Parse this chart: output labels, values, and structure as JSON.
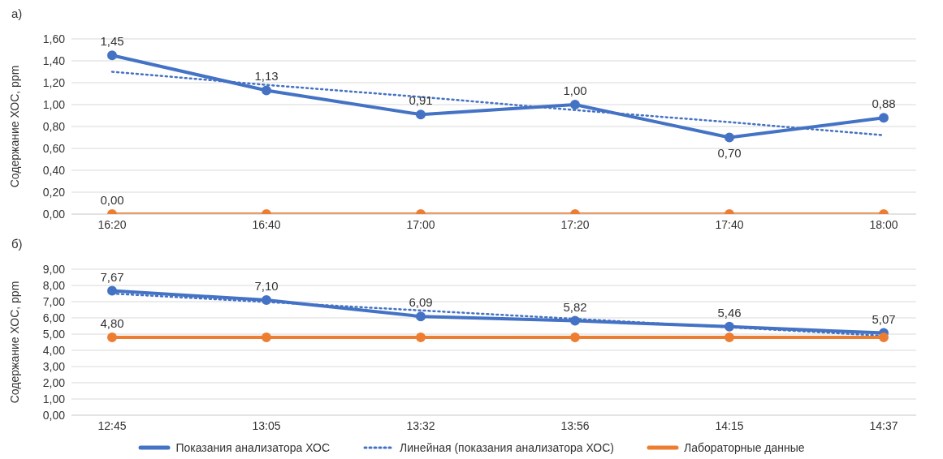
{
  "chart_data": [
    {
      "type": "line",
      "title": "а)",
      "ylabel": "Содержание ХОС, ppm",
      "categories": [
        "16:20",
        "16:40",
        "17:00",
        "17:20",
        "17:40",
        "18:00"
      ],
      "ylim": [
        0,
        1.6
      ],
      "yticks": [
        {
          "value": 0,
          "label": "0,00"
        },
        {
          "value": 0.2,
          "label": "0,20"
        },
        {
          "value": 0.4,
          "label": "0,40"
        },
        {
          "value": 0.6,
          "label": "0,60"
        },
        {
          "value": 0.8,
          "label": "0,80"
        },
        {
          "value": 1.0,
          "label": "1,00"
        },
        {
          "value": 1.2,
          "label": "1,20"
        },
        {
          "value": 1.4,
          "label": "1,40"
        },
        {
          "value": 1.6,
          "label": "1,60"
        }
      ],
      "grid": "y",
      "series": [
        {
          "color": "#4472c4",
          "values": [
            1.45,
            1.13,
            0.91,
            1.0,
            0.7,
            0.88
          ],
          "value_labels": [
            "1,45",
            "1,13",
            "0,91",
            "1,00",
            "0,70",
            "0,88"
          ],
          "marker": "circle",
          "line_style": "solid"
        },
        {
          "color": "#4472c4",
          "values": [
            1.3,
            1.18,
            1.07,
            0.95,
            0.84,
            0.72
          ],
          "marker": "none",
          "line_style": "dotted"
        },
        {
          "color": "#ed7d31",
          "values": [
            0,
            0,
            0,
            0,
            0,
            0
          ],
          "value_labels": [
            "0,00",
            null,
            null,
            null,
            null,
            null
          ],
          "marker": "circle",
          "line_style": "solid"
        }
      ]
    },
    {
      "type": "line",
      "title": "б)",
      "ylabel": "Содержание ХОС, ppm",
      "categories": [
        "12:45",
        "13:05",
        "13:32",
        "13:56",
        "14:15",
        "14:37"
      ],
      "ylim": [
        0,
        9
      ],
      "yticks": [
        {
          "value": 0,
          "label": "0,00"
        },
        {
          "value": 1,
          "label": "1,00"
        },
        {
          "value": 2,
          "label": "2,00"
        },
        {
          "value": 3,
          "label": "3,00"
        },
        {
          "value": 4,
          "label": "4,00"
        },
        {
          "value": 5,
          "label": "5,00"
        },
        {
          "value": 6,
          "label": "6,00"
        },
        {
          "value": 7,
          "label": "7,00"
        },
        {
          "value": 8,
          "label": "8,00"
        },
        {
          "value": 9,
          "label": "9,00"
        }
      ],
      "grid": "y",
      "legend": "bottom",
      "series": [
        {
          "name": "Показания анализатора ХОС",
          "color": "#4472c4",
          "values": [
            7.67,
            7.1,
            6.09,
            5.82,
            5.46,
            5.07
          ],
          "value_labels": [
            "7,67",
            "7,10",
            "6,09",
            "5,82",
            "5,46",
            "5,07"
          ],
          "marker": "circle",
          "line_style": "solid"
        },
        {
          "name": "Линейная (показания анализатора ХОС)",
          "color": "#4472c4",
          "values": [
            7.5,
            6.98,
            6.46,
            5.94,
            5.42,
            4.9
          ],
          "marker": "none",
          "line_style": "dotted"
        },
        {
          "name": "Лабораторные данные",
          "color": "#ed7d31",
          "values": [
            4.8,
            4.8,
            4.8,
            4.8,
            4.8,
            4.8
          ],
          "value_labels": [
            "4,80",
            null,
            null,
            null,
            null,
            null
          ],
          "marker": "circle",
          "line_style": "solid"
        }
      ]
    }
  ]
}
